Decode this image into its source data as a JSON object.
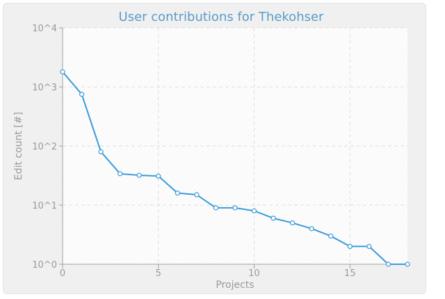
{
  "chart_data": {
    "type": "line",
    "title": "User contributions for Thekohser",
    "xlabel": "Projects",
    "ylabel": "Edit count [#]",
    "x_scale": "linear",
    "y_scale": "log",
    "xlim": [
      0,
      18
    ],
    "ylim": [
      1,
      10000
    ],
    "x_ticks": [
      {
        "value": 0,
        "label": "0"
      },
      {
        "value": 5,
        "label": "5"
      },
      {
        "value": 10,
        "label": "10"
      },
      {
        "value": 15,
        "label": "15"
      }
    ],
    "y_ticks": [
      {
        "value": 1,
        "label": "10^0"
      },
      {
        "value": 10,
        "label": "10^1"
      },
      {
        "value": 100,
        "label": "10^2"
      },
      {
        "value": 1000,
        "label": "10^3"
      },
      {
        "value": 10000,
        "label": "10^4"
      }
    ],
    "grid": true,
    "colors": {
      "line": "#3a9bd8",
      "marker_fill": "#ffffff",
      "title": "#5b9bc9",
      "grid": "#dedede",
      "axis": "#a0a0a0",
      "plot_bg": "#fcfcfc",
      "frame_bg": "#f0f0f0"
    },
    "series": [
      {
        "x": [
          0,
          1,
          2,
          3,
          4,
          5,
          6,
          7,
          8,
          9,
          10,
          11,
          12,
          13,
          14,
          15,
          16,
          17,
          18
        ],
        "values": [
          1800,
          750,
          80,
          34,
          32,
          31,
          16,
          15,
          9,
          9,
          8,
          6,
          5,
          4,
          3,
          2,
          2,
          1,
          1
        ]
      }
    ]
  }
}
